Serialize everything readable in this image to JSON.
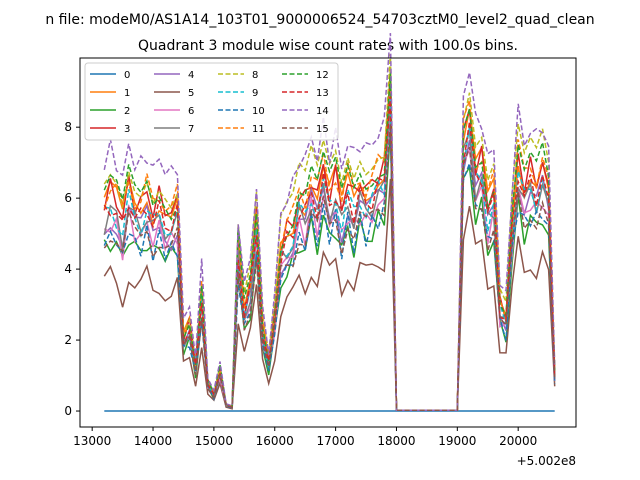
{
  "chart_data": {
    "type": "line",
    "suptitle": "n file: modeM0/AS1A14_103T01_9000006524_54703cztM0_level2_quad_clean",
    "title": "Quadrant 3 module wise count rates with 100.0s bins.",
    "x_offset_label": "+5.002e8",
    "xlabel": "",
    "ylabel": "",
    "xlim": [
      12800,
      20950
    ],
    "ylim": [
      -0.45,
      9.95
    ],
    "xticks": [
      13000,
      14000,
      15000,
      16000,
      17000,
      18000,
      19000,
      20000
    ],
    "xtick_labels": [
      "13000",
      "14000",
      "15000",
      "16000",
      "17000",
      "18000",
      "19000",
      "20000"
    ],
    "yticks": [
      0,
      2,
      4,
      6,
      8
    ],
    "ytick_labels": [
      "0",
      "2",
      "4",
      "6",
      "8"
    ],
    "legend_position": "upper-left",
    "legend_columns": 4,
    "grid": false,
    "x": [
      13200,
      13300,
      13400,
      13500,
      13600,
      13700,
      13800,
      13900,
      14000,
      14100,
      14200,
      14300,
      14400,
      14500,
      14600,
      14700,
      14800,
      14900,
      15000,
      15100,
      15200,
      15300,
      15400,
      15500,
      15600,
      15700,
      15800,
      15900,
      16000,
      16100,
      16200,
      16300,
      16400,
      16500,
      16600,
      16700,
      16800,
      16900,
      17000,
      17100,
      17200,
      17300,
      17400,
      17500,
      17600,
      17700,
      17800,
      17900,
      18000,
      18100,
      18200,
      18300,
      18400,
      18500,
      18600,
      18700,
      18800,
      18900,
      19000,
      19100,
      19200,
      19300,
      19400,
      19500,
      19600,
      19700,
      19800,
      19900,
      20000,
      20100,
      20200,
      20300,
      20400,
      20500,
      20600
    ],
    "series_base": [
      5.0,
      5.3,
      5.1,
      4.6,
      5.5,
      5.0,
      4.9,
      5.3,
      4.8,
      5.1,
      4.9,
      4.7,
      5.0,
      1.8,
      2.1,
      1.1,
      2.9,
      0.7,
      0.4,
      1.0,
      0.15,
      0.1,
      4.0,
      2.5,
      3.1,
      4.6,
      2.0,
      1.2,
      2.3,
      4.0,
      4.3,
      4.5,
      5.2,
      5.0,
      5.7,
      5.2,
      5.9,
      5.3,
      5.7,
      4.9,
      5.6,
      5.1,
      5.6,
      5.3,
      5.5,
      5.8,
      5.9,
      8.7,
      0.02,
      0.02,
      0.02,
      0.02,
      0.02,
      0.02,
      0.02,
      0.02,
      0.02,
      0.02,
      0.02,
      6.8,
      7.5,
      6.0,
      6.2,
      5.0,
      5.4,
      2.6,
      2.3,
      4.6,
      6.3,
      5.5,
      5.9,
      5.6,
      6.1,
      5.2,
      0.9
    ],
    "series": [
      {
        "name": "0",
        "color": "#1f77b4",
        "dashed": false,
        "flat": 0.0,
        "offset": 0.0,
        "scale": 1.0
      },
      {
        "name": "1",
        "color": "#ff7f0e",
        "dashed": false,
        "offset": 0.6,
        "scale": 1.05
      },
      {
        "name": "2",
        "color": "#2ca02c",
        "dashed": false,
        "offset": -0.2,
        "scale": 0.95
      },
      {
        "name": "3",
        "color": "#d62728",
        "dashed": false,
        "offset": 0.8,
        "scale": 1.02
      },
      {
        "name": "4",
        "color": "#9467bd",
        "dashed": false,
        "offset": 0.2,
        "scale": 1.0
      },
      {
        "name": "5",
        "color": "#8c564b",
        "dashed": false,
        "offset": -0.9,
        "scale": 0.88
      },
      {
        "name": "6",
        "color": "#e377c2",
        "dashed": false,
        "offset": 0.1,
        "scale": 0.98
      },
      {
        "name": "7",
        "color": "#7f7f7f",
        "dashed": false,
        "offset": 0.3,
        "scale": 1.0
      },
      {
        "name": "8",
        "color": "#bcbd22",
        "dashed": true,
        "offset": 1.2,
        "scale": 1.05
      },
      {
        "name": "9",
        "color": "#17becf",
        "dashed": true,
        "offset": 0.4,
        "scale": 1.0
      },
      {
        "name": "10",
        "color": "#1f77b4",
        "dashed": true,
        "offset": -0.1,
        "scale": 0.96
      },
      {
        "name": "11",
        "color": "#ff7f0e",
        "dashed": true,
        "offset": 0.9,
        "scale": 1.03
      },
      {
        "name": "12",
        "color": "#2ca02c",
        "dashed": true,
        "offset": 1.0,
        "scale": 1.02
      },
      {
        "name": "13",
        "color": "#d62728",
        "dashed": true,
        "offset": 0.5,
        "scale": 1.0
      },
      {
        "name": "14",
        "color": "#9467bd",
        "dashed": true,
        "offset": 1.6,
        "scale": 1.08
      },
      {
        "name": "15",
        "color": "#8c564b",
        "dashed": true,
        "offset": 0.0,
        "scale": 0.97
      }
    ]
  }
}
